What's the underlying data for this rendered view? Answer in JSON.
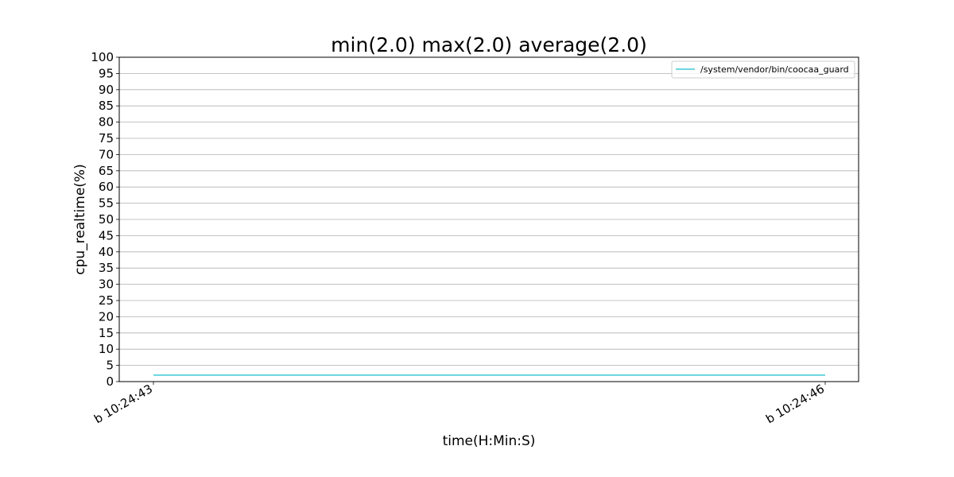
{
  "chart_data": {
    "type": "line",
    "title": "min(2.0) max(2.0) average(2.0)",
    "xlabel": "time(H:Min:S)",
    "ylabel": "cpu_realtime(%)",
    "x": [
      "b 10:24:43",
      "b 10:24:46"
    ],
    "series": [
      {
        "name": "/system/vendor/bin/coocaa_guard",
        "values": [
          2.0,
          2.0
        ],
        "color": "#17becf"
      }
    ],
    "ylim": [
      0,
      100
    ],
    "yticks": [
      0,
      5,
      10,
      15,
      20,
      25,
      30,
      35,
      40,
      45,
      50,
      55,
      60,
      65,
      70,
      75,
      80,
      85,
      90,
      95,
      100
    ],
    "grid": "horizontal",
    "legend": "top-right"
  }
}
